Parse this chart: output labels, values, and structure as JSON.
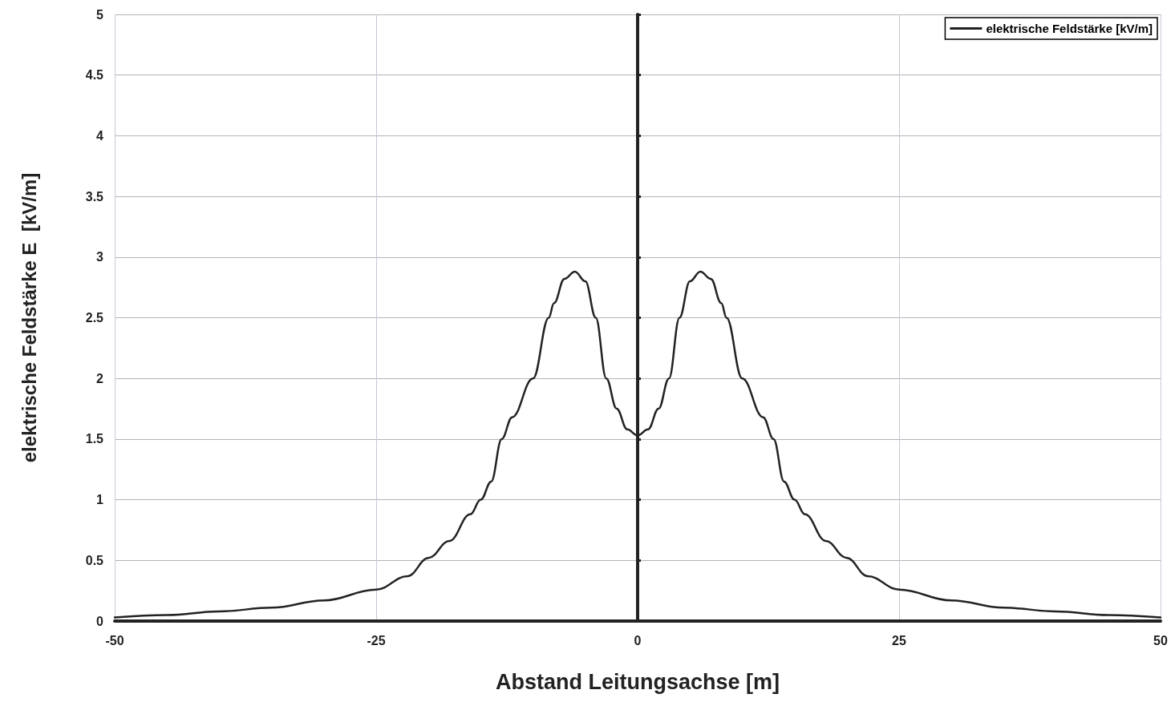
{
  "chart_data": {
    "type": "line",
    "xlabel": "Abstand Leitungsachse [m]",
    "ylabel": "elektrische Feldstärke E  [kV/m]",
    "x": [
      -50,
      -45,
      -40,
      -35,
      -30,
      -25,
      -22,
      -20,
      -18,
      -16,
      -15,
      -14,
      -13,
      -12,
      -10,
      -8.5,
      -8,
      -7,
      -6,
      -5,
      -4,
      -3,
      -2,
      -1,
      0,
      1,
      2,
      3,
      4,
      5,
      6,
      7,
      8,
      8.5,
      10,
      12,
      13,
      14,
      15,
      16,
      18,
      20,
      22,
      25,
      30,
      35,
      40,
      45,
      50
    ],
    "series": [
      {
        "name": "elektrische Feldstärke [kV/m]",
        "color": "#222222",
        "values": [
          0.03,
          0.05,
          0.08,
          0.11,
          0.17,
          0.26,
          0.37,
          0.52,
          0.66,
          0.88,
          1.0,
          1.15,
          1.5,
          1.68,
          2.0,
          2.5,
          2.62,
          2.82,
          2.88,
          2.8,
          2.5,
          2.0,
          1.75,
          1.58,
          1.53,
          1.58,
          1.75,
          2.0,
          2.5,
          2.8,
          2.88,
          2.82,
          2.62,
          2.5,
          2.0,
          1.68,
          1.5,
          1.15,
          1.0,
          0.88,
          0.66,
          0.52,
          0.37,
          0.26,
          0.17,
          0.11,
          0.08,
          0.05,
          0.03
        ]
      }
    ],
    "xlim": [
      -50,
      50
    ],
    "xticks": [
      -50,
      -25,
      0,
      25,
      50
    ],
    "ylim": [
      0,
      5
    ],
    "yticks": [
      0,
      0.5,
      1,
      1.5,
      2,
      2.5,
      3,
      3.5,
      4,
      4.5,
      5
    ],
    "grid": true,
    "legend": "top right",
    "marker": "none",
    "line_style": "solid"
  }
}
